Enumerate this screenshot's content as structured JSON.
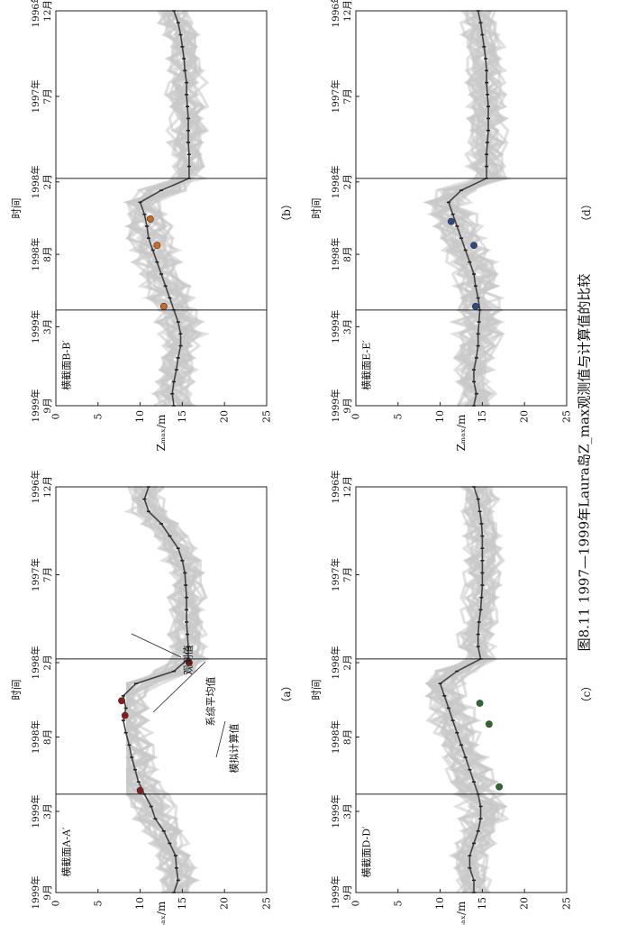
{
  "figure_caption": "图8.11  1997—1999年Laura岛Z_max观测值与计算值的比较",
  "legend_labels": {
    "observed": "观测值",
    "ensemble_mean": "系综平均值",
    "simulated": "模拟计算值"
  },
  "chart_data": [
    {
      "id": "a",
      "type": "line",
      "panel_label": "（a）",
      "section_label": "横截面A-A′",
      "xlabel": "时间",
      "ylabel": "Z_max/m",
      "x_ticks": [
        "1996年 12月",
        "1997年 7月",
        "1998年 2月",
        "1998年 8月",
        "1999年 3月",
        "1999年 9月"
      ],
      "xlim": [
        0,
        33
      ],
      "ylim": [
        0,
        25
      ],
      "y_ticks": [
        0,
        5,
        10,
        15,
        20,
        25
      ],
      "vlines_month_index": [
        14,
        25
      ],
      "series": [
        {
          "name": "系综平均值",
          "x": [
            0,
            1,
            2,
            3,
            4,
            5,
            6,
            7,
            8,
            9,
            10,
            11,
            12,
            13,
            14,
            15,
            16,
            17,
            18,
            19,
            20,
            21,
            22,
            23,
            24,
            25,
            26,
            27,
            28,
            29,
            30,
            31,
            32,
            33
          ],
          "y": [
            11.0,
            10.5,
            11.0,
            12.5,
            13.5,
            14.5,
            15.0,
            15.3,
            15.4,
            15.5,
            15.5,
            15.5,
            15.6,
            15.7,
            15.7,
            14.0,
            9.5,
            8.0,
            8.3,
            8.0,
            8.3,
            8.7,
            9.0,
            9.4,
            9.8,
            10.5,
            11.3,
            11.8,
            12.8,
            13.5,
            14.2,
            14.3,
            14.5,
            14.0
          ]
        }
      ],
      "observed": [
        {
          "x": 14.3,
          "y": 15.8
        },
        {
          "x": 17.4,
          "y": 7.8
        },
        {
          "x": 18.6,
          "y": 8.2
        },
        {
          "x": 24.7,
          "y": 10.0
        }
      ],
      "observed_color": "#8b1a1a"
    },
    {
      "id": "b",
      "type": "line",
      "panel_label": "（b）",
      "section_label": "横截面B-B′",
      "xlabel": "时间",
      "ylabel": "Z_max/m",
      "x_ticks": [
        "1996年 12月",
        "1997年 7月",
        "1998年 2月",
        "1998年 8月",
        "1999年 3月",
        "1999年 9月"
      ],
      "xlim": [
        0,
        33
      ],
      "ylim": [
        0,
        25
      ],
      "y_ticks": [
        0,
        5,
        10,
        15,
        20,
        25
      ],
      "vlines_month_index": [
        14,
        25
      ],
      "series": [
        {
          "name": "系综平均值",
          "x": [
            0,
            1,
            2,
            3,
            4,
            5,
            6,
            7,
            8,
            9,
            10,
            11,
            12,
            13,
            14,
            15,
            16,
            17,
            18,
            19,
            20,
            21,
            22,
            23,
            24,
            25,
            26,
            27,
            28,
            29,
            30,
            31,
            32,
            33
          ],
          "y": [
            14.0,
            14.5,
            14.8,
            15.0,
            15.2,
            15.3,
            15.5,
            15.5,
            15.6,
            15.7,
            15.7,
            15.7,
            15.8,
            15.8,
            15.8,
            12.5,
            10.0,
            10.5,
            10.8,
            11.0,
            11.5,
            12.0,
            12.5,
            13.0,
            13.5,
            14.0,
            14.5,
            14.8,
            14.8,
            14.5,
            14.3,
            14.0,
            13.8,
            14.0
          ]
        }
      ],
      "observed": [
        {
          "x": 17.4,
          "y": 11.2
        },
        {
          "x": 19.6,
          "y": 12.0
        },
        {
          "x": 24.7,
          "y": 12.8
        }
      ],
      "observed_color": "#d2691e"
    },
    {
      "id": "c",
      "type": "line",
      "panel_label": "（c）",
      "section_label": "横截面D-D′",
      "xlabel": "时间",
      "ylabel": "Z_max/m",
      "x_ticks": [
        "1996年 12月",
        "1997年 7月",
        "1998年 2月",
        "1998年 8月",
        "1999年 3月",
        "1999年 9月"
      ],
      "xlim": [
        0,
        33
      ],
      "ylim": [
        0,
        25
      ],
      "y_ticks": [
        0,
        5,
        10,
        15,
        20,
        25
      ],
      "vlines_month_index": [
        14,
        25
      ],
      "series": [
        {
          "name": "系综平均值",
          "x": [
            0,
            1,
            2,
            3,
            4,
            5,
            6,
            7,
            8,
            9,
            10,
            11,
            12,
            13,
            14,
            15,
            16,
            17,
            18,
            19,
            20,
            21,
            22,
            23,
            24,
            25,
            26,
            27,
            28,
            29,
            30,
            31,
            32,
            33
          ],
          "y": [
            14.0,
            14.5,
            14.7,
            14.9,
            15.0,
            15.0,
            15.0,
            15.0,
            15.0,
            14.9,
            14.8,
            14.6,
            14.5,
            14.5,
            14.8,
            12.0,
            10.0,
            10.5,
            11.0,
            11.5,
            12.0,
            12.5,
            13.0,
            13.5,
            14.0,
            14.5,
            14.8,
            14.8,
            14.5,
            14.0,
            13.5,
            13.5,
            14.0,
            14.0
          ]
        }
      ],
      "observed": [
        {
          "x": 17.6,
          "y": 14.7
        },
        {
          "x": 19.3,
          "y": 15.8
        },
        {
          "x": 24.4,
          "y": 17.0
        }
      ],
      "observed_color": "#2e6b2e"
    },
    {
      "id": "d",
      "type": "line",
      "panel_label": "（d）",
      "section_label": "横截面E-E′",
      "xlabel": "时间",
      "ylabel": "Z_max/m",
      "x_ticks": [
        "1996年 12月",
        "1997年 7月",
        "1998年 2月",
        "1998年 8月",
        "1999年 3月",
        "1999年 9月"
      ],
      "xlim": [
        0,
        33
      ],
      "ylim": [
        0,
        25
      ],
      "y_ticks": [
        0,
        5,
        10,
        15,
        20,
        25
      ],
      "vlines_month_index": [
        14,
        25
      ],
      "series": [
        {
          "name": "系综平均值",
          "x": [
            0,
            1,
            2,
            3,
            4,
            5,
            6,
            7,
            8,
            9,
            10,
            11,
            12,
            13,
            14,
            15,
            16,
            17,
            18,
            19,
            20,
            21,
            22,
            23,
            24,
            25,
            26,
            27,
            28,
            29,
            30,
            31,
            32,
            33
          ],
          "y": [
            14.5,
            14.8,
            15.0,
            15.2,
            15.4,
            15.5,
            15.5,
            15.6,
            15.7,
            15.7,
            15.7,
            15.6,
            15.5,
            15.5,
            15.5,
            12.5,
            11.0,
            11.5,
            12.0,
            12.5,
            13.0,
            13.5,
            14.0,
            14.2,
            14.5,
            14.7,
            14.6,
            14.5,
            14.5,
            14.3,
            14.0,
            14.0,
            14.3,
            14.0
          ]
        }
      ],
      "observed": [
        {
          "x": 17.6,
          "y": 11.3
        },
        {
          "x": 19.6,
          "y": 14.0
        },
        {
          "x": 24.7,
          "y": 14.2
        }
      ],
      "observed_color": "#2b4a8b"
    }
  ]
}
